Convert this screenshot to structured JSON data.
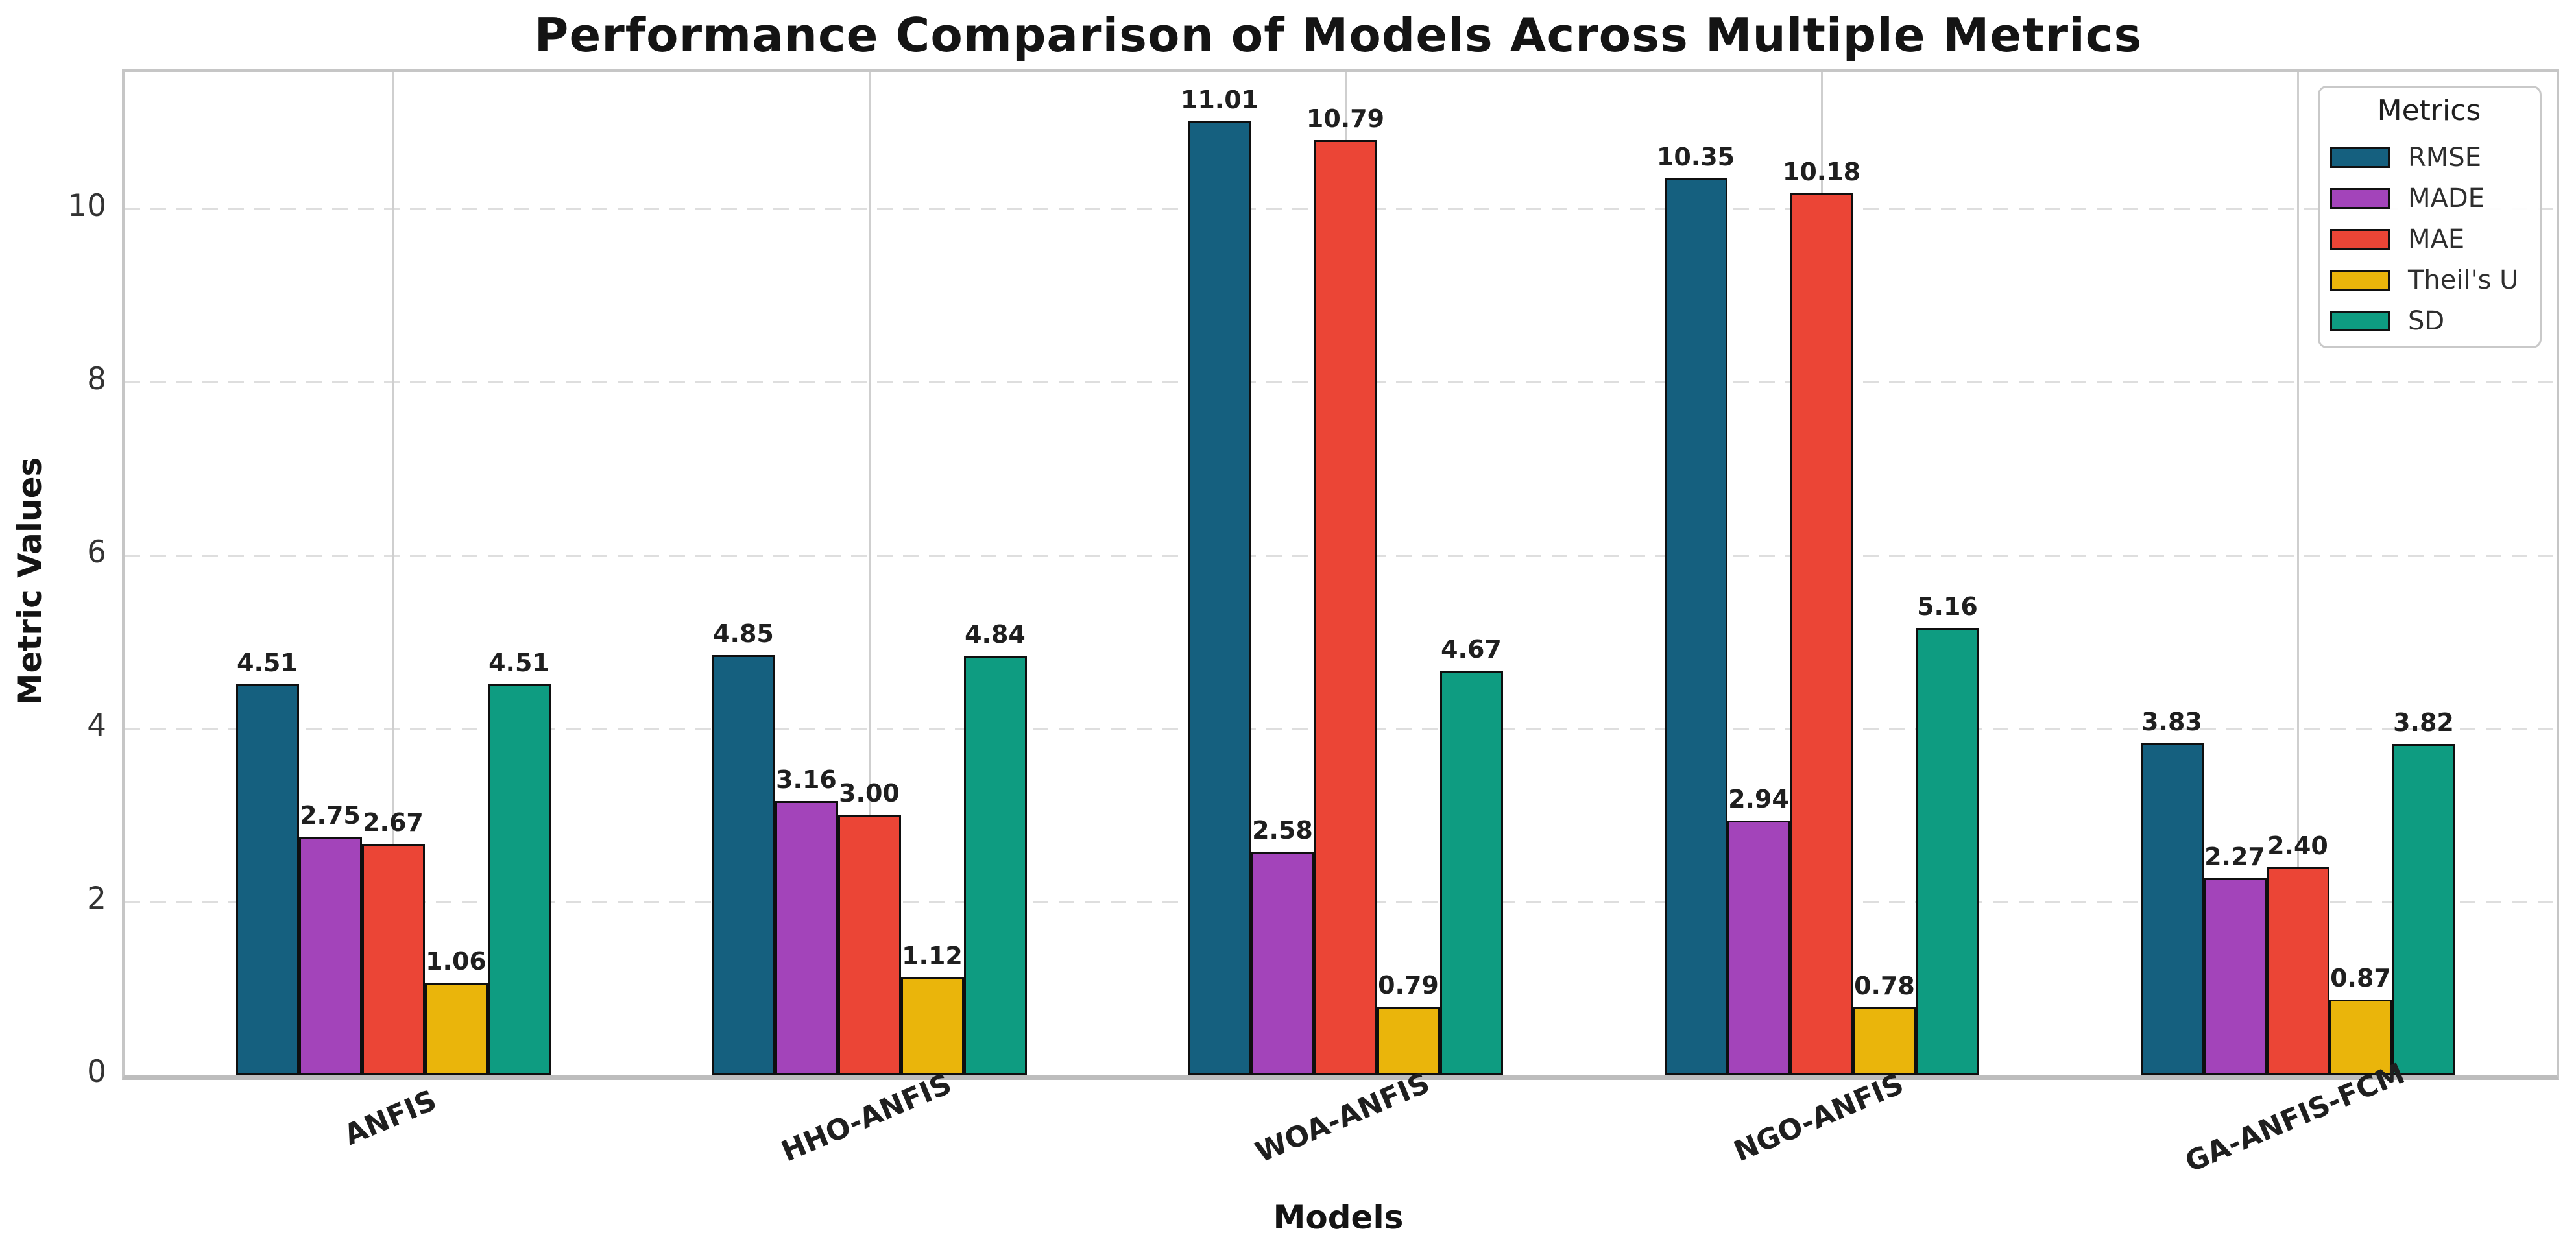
{
  "chart_data": {
    "type": "bar",
    "title": "Performance Comparison of Models Across Multiple Metrics",
    "xlabel": "Models",
    "ylabel": "Metric Values",
    "legend_title": "Metrics",
    "legend_position": "upper right",
    "categories": [
      "ANFIS",
      "HHO-ANFIS",
      "WOA-ANFIS",
      "NGO-ANFIS",
      "GA-ANFIS-FCM"
    ],
    "series": [
      {
        "name": "RMSE",
        "color": "#15607f",
        "values": [
          4.51,
          4.85,
          11.01,
          10.35,
          3.83
        ]
      },
      {
        "name": "MADE",
        "color": "#a344ba",
        "values": [
          2.75,
          3.16,
          2.58,
          2.94,
          2.27
        ]
      },
      {
        "name": "MAE",
        "color": "#eb4536",
        "values": [
          2.67,
          3.0,
          10.79,
          10.18,
          2.4
        ]
      },
      {
        "name": "Theil's U",
        "color": "#eab50b",
        "values": [
          1.06,
          1.12,
          0.79,
          0.78,
          0.87
        ]
      },
      {
        "name": "SD",
        "color": "#0e9c81",
        "values": [
          4.51,
          4.84,
          4.67,
          5.16,
          3.82
        ]
      }
    ],
    "value_labels_decimals": 2,
    "ylim": [
      0,
      11.58
    ],
    "yticks": [
      0,
      2,
      4,
      6,
      8,
      10
    ],
    "grid": true,
    "bar_edge_color": "#0f0f0f"
  }
}
